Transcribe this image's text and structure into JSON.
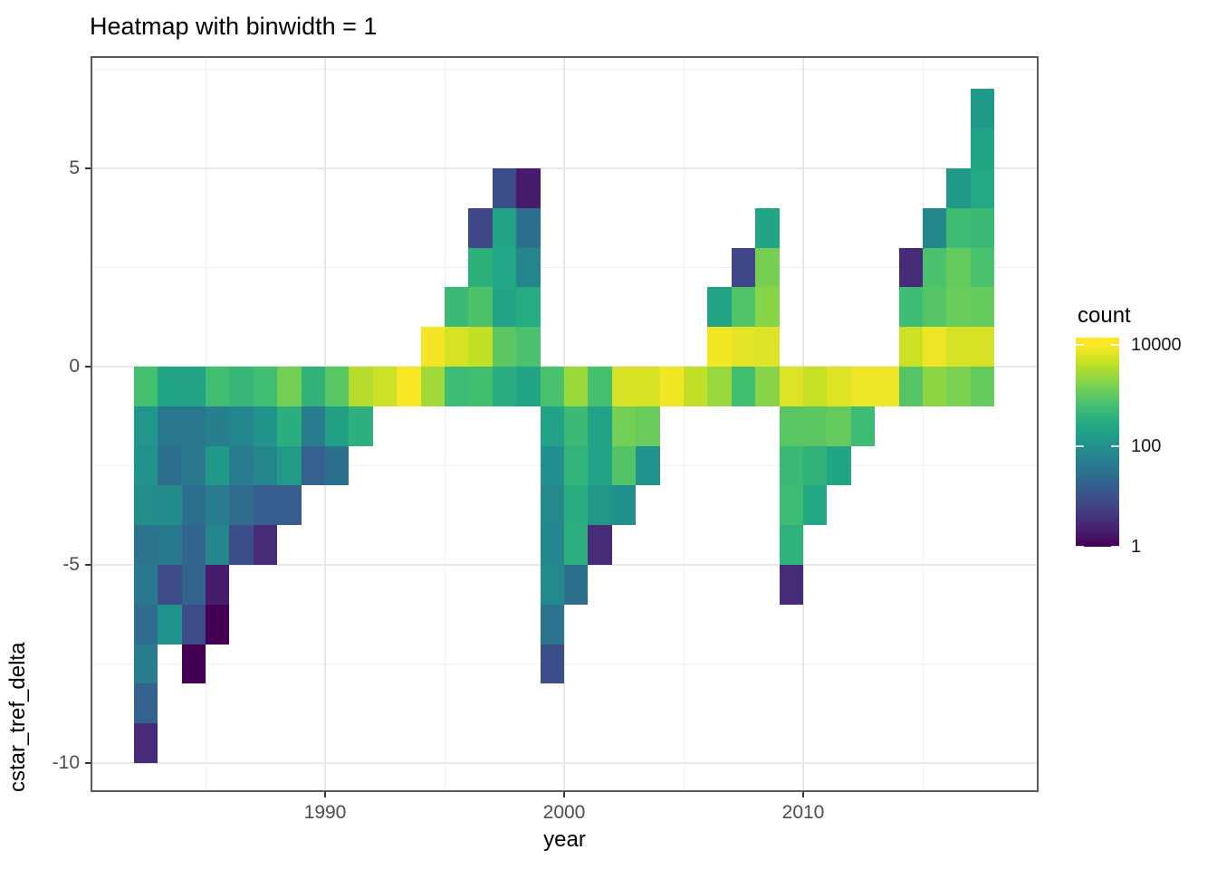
{
  "page_title": "Heatmap with binwidth = 1",
  "x_axis": {
    "label": "year",
    "major_ticks": [
      1990,
      2000,
      2010
    ],
    "minor_gridlines": [
      1985,
      1995,
      2005,
      2015
    ]
  },
  "y_axis": {
    "label": "cstar_tref_delta",
    "major_ticks": [
      5,
      0,
      -5,
      -10
    ],
    "minor_gridlines": [
      7.5,
      2.5,
      -2.5,
      -7.5
    ]
  },
  "legend": {
    "title": "count",
    "tick_labels": [
      "10000",
      "100",
      "1"
    ],
    "tick_values": [
      10000,
      100,
      1
    ]
  },
  "chart_data": {
    "type": "heatmap",
    "title": "Heatmap with binwidth = 1",
    "xlabel": "year",
    "ylabel": "cstar_tref_delta",
    "binwidth": 1,
    "x_axis_ticks": [
      1990,
      2000,
      2010
    ],
    "y_axis_ticks": [
      5,
      0,
      -5,
      -10
    ],
    "x_range_shown": [
      1980.2,
      2019.9
    ],
    "y_range_shown": [
      -10.7,
      7.8
    ],
    "grid": "major-and-minor",
    "legend_position": "right",
    "color_scale": {
      "palette": "viridis",
      "transform": "log10",
      "domain": [
        1,
        10000
      ],
      "legend_title": "count"
    },
    "tiles_format": [
      "year_bin_left",
      "y_bin_bottom",
      "count"
    ],
    "tiles": [
      [
        1982,
        -1,
        630
      ],
      [
        1982,
        -2,
        120
      ],
      [
        1982,
        -3,
        105
      ],
      [
        1982,
        -4,
        85
      ],
      [
        1982,
        -5,
        33
      ],
      [
        1982,
        -6,
        40
      ],
      [
        1982,
        -7,
        26
      ],
      [
        1982,
        -8,
        46
      ],
      [
        1982,
        -9,
        17
      ],
      [
        1982,
        -10,
        3
      ],
      [
        1983,
        -1,
        210
      ],
      [
        1983,
        -2,
        40
      ],
      [
        1983,
        -3,
        28
      ],
      [
        1983,
        -4,
        80
      ],
      [
        1983,
        -5,
        42
      ],
      [
        1983,
        -6,
        8
      ],
      [
        1983,
        -7,
        105
      ],
      [
        1984,
        -1,
        200
      ],
      [
        1984,
        -2,
        40
      ],
      [
        1984,
        -3,
        40
      ],
      [
        1984,
        -4,
        28
      ],
      [
        1984,
        -5,
        19
      ],
      [
        1984,
        -6,
        20
      ],
      [
        1984,
        -7,
        8
      ],
      [
        1984,
        -8,
        1
      ],
      [
        1985,
        -1,
        580
      ],
      [
        1985,
        -2,
        52
      ],
      [
        1985,
        -3,
        140
      ],
      [
        1985,
        -4,
        46
      ],
      [
        1985,
        -5,
        70
      ],
      [
        1985,
        -6,
        2
      ],
      [
        1985,
        -7,
        1
      ],
      [
        1986,
        -1,
        440
      ],
      [
        1986,
        -2,
        70
      ],
      [
        1986,
        -3,
        46
      ],
      [
        1986,
        -4,
        26
      ],
      [
        1986,
        -5,
        9
      ],
      [
        1987,
        -1,
        560
      ],
      [
        1987,
        -2,
        110
      ],
      [
        1987,
        -3,
        65
      ],
      [
        1987,
        -4,
        15
      ],
      [
        1987,
        -5,
        3
      ],
      [
        1988,
        -1,
        1450
      ],
      [
        1988,
        -2,
        310
      ],
      [
        1988,
        -3,
        150
      ],
      [
        1988,
        -4,
        15
      ],
      [
        1989,
        -1,
        380
      ],
      [
        1989,
        -2,
        44
      ],
      [
        1989,
        -3,
        17
      ],
      [
        1990,
        -1,
        900
      ],
      [
        1990,
        -2,
        190
      ],
      [
        1990,
        -3,
        30
      ],
      [
        1991,
        -1,
        3600
      ],
      [
        1991,
        -2,
        340
      ],
      [
        1992,
        -1,
        4800
      ],
      [
        1993,
        -1,
        9200
      ],
      [
        1994,
        0,
        8800
      ],
      [
        1994,
        -1,
        2700
      ],
      [
        1995,
        1,
        500
      ],
      [
        1995,
        0,
        5600
      ],
      [
        1995,
        -1,
        520
      ],
      [
        1996,
        3,
        7
      ],
      [
        1996,
        2,
        350
      ],
      [
        1996,
        1,
        750
      ],
      [
        1996,
        0,
        4300
      ],
      [
        1996,
        -1,
        600
      ],
      [
        1997,
        4,
        9
      ],
      [
        1997,
        3,
        200
      ],
      [
        1997,
        2,
        230
      ],
      [
        1997,
        1,
        215
      ],
      [
        1997,
        0,
        950
      ],
      [
        1997,
        -1,
        320
      ],
      [
        1998,
        4,
        2
      ],
      [
        1998,
        3,
        30
      ],
      [
        1998,
        2,
        65
      ],
      [
        1998,
        1,
        280
      ],
      [
        1998,
        0,
        700
      ],
      [
        1998,
        -1,
        225
      ],
      [
        1999,
        -1,
        700
      ],
      [
        1999,
        -2,
        200
      ],
      [
        1999,
        -3,
        95
      ],
      [
        1999,
        -4,
        72
      ],
      [
        1999,
        -5,
        70
      ],
      [
        1999,
        -6,
        75
      ],
      [
        1999,
        -7,
        33
      ],
      [
        1999,
        -8,
        9
      ],
      [
        2000,
        -1,
        2500
      ],
      [
        2000,
        -2,
        500
      ],
      [
        2000,
        -3,
        390
      ],
      [
        2000,
        -4,
        310
      ],
      [
        2000,
        -5,
        330
      ],
      [
        2000,
        -6,
        30
      ],
      [
        2001,
        -1,
        650
      ],
      [
        2001,
        -2,
        195
      ],
      [
        2001,
        -3,
        200
      ],
      [
        2001,
        -4,
        125
      ],
      [
        2001,
        -5,
        3
      ],
      [
        2002,
        -1,
        5600
      ],
      [
        2002,
        -2,
        1400
      ],
      [
        2002,
        -3,
        800
      ],
      [
        2002,
        -4,
        95
      ],
      [
        2003,
        -1,
        5800
      ],
      [
        2003,
        -2,
        1200
      ],
      [
        2003,
        -3,
        105
      ],
      [
        2004,
        -1,
        8600
      ],
      [
        2005,
        -1,
        4200
      ],
      [
        2006,
        1,
        205
      ],
      [
        2006,
        0,
        8600
      ],
      [
        2006,
        -1,
        2400
      ],
      [
        2007,
        2,
        7
      ],
      [
        2007,
        1,
        800
      ],
      [
        2007,
        0,
        6800
      ],
      [
        2007,
        -1,
        600
      ],
      [
        2008,
        3,
        210
      ],
      [
        2008,
        2,
        1500
      ],
      [
        2008,
        1,
        1900
      ],
      [
        2008,
        0,
        6300
      ],
      [
        2008,
        -1,
        1900
      ],
      [
        2009,
        -1,
        6300
      ],
      [
        2009,
        -2,
        900
      ],
      [
        2009,
        -3,
        500
      ],
      [
        2009,
        -4,
        550
      ],
      [
        2009,
        -5,
        370
      ],
      [
        2009,
        -6,
        3
      ],
      [
        2010,
        -1,
        4600
      ],
      [
        2010,
        -2,
        950
      ],
      [
        2010,
        -3,
        380
      ],
      [
        2010,
        -4,
        250
      ],
      [
        2011,
        -1,
        6500
      ],
      [
        2011,
        -2,
        1100
      ],
      [
        2011,
        -3,
        220
      ],
      [
        2012,
        -1,
        8000
      ],
      [
        2012,
        -2,
        520
      ],
      [
        2013,
        -1,
        8000
      ],
      [
        2014,
        2,
        3
      ],
      [
        2014,
        1,
        550
      ],
      [
        2014,
        0,
        4800
      ],
      [
        2014,
        -1,
        850
      ],
      [
        2015,
        3,
        70
      ],
      [
        2015,
        2,
        700
      ],
      [
        2015,
        1,
        850
      ],
      [
        2015,
        0,
        8000
      ],
      [
        2015,
        -1,
        2100
      ],
      [
        2016,
        4,
        140
      ],
      [
        2016,
        3,
        550
      ],
      [
        2016,
        2,
        1100
      ],
      [
        2016,
        1,
        1200
      ],
      [
        2016,
        0,
        5600
      ],
      [
        2016,
        -1,
        1600
      ],
      [
        2017,
        6,
        140
      ],
      [
        2017,
        5,
        220
      ],
      [
        2017,
        4,
        260
      ],
      [
        2017,
        3,
        480
      ],
      [
        2017,
        2,
        700
      ],
      [
        2017,
        1,
        1100
      ],
      [
        2017,
        0,
        5600
      ],
      [
        2017,
        -1,
        1100
      ]
    ]
  }
}
